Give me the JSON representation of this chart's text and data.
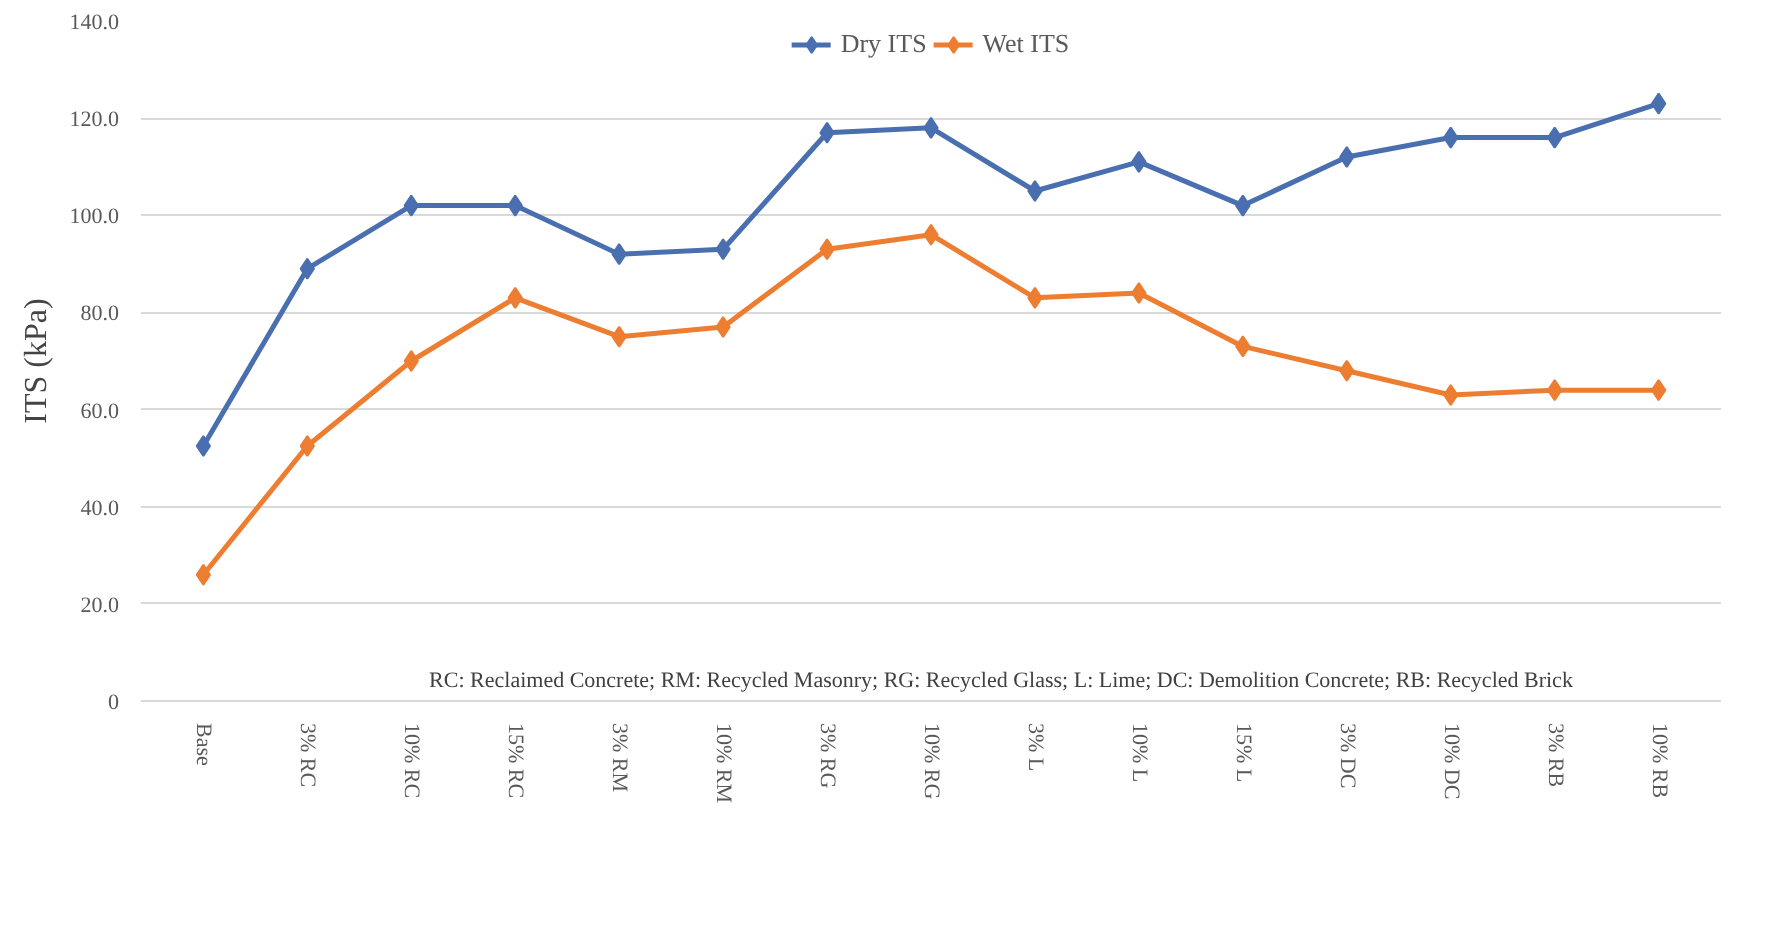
{
  "chart_data": {
    "type": "line",
    "ylabel": "ITS (kPa)",
    "categories": [
      "Base",
      "3% RC",
      "10% RC",
      "15% RC",
      "3% RM",
      "10% RM",
      "3% RG",
      "10% RG",
      "3% L",
      "10% L",
      "15% L",
      "3% DC",
      "10% DC",
      "3% RB",
      "10% RB"
    ],
    "series": [
      {
        "name": "Dry ITS",
        "color": "#4a6fb0",
        "values": [
          52.5,
          89,
          102,
          102,
          92,
          93,
          117,
          118,
          105,
          111,
          102,
          112,
          116,
          116,
          123
        ]
      },
      {
        "name": "Wet ITS",
        "color": "#ed7d31",
        "values": [
          26,
          52.5,
          70,
          83,
          75,
          77,
          93,
          96,
          83,
          84,
          73,
          68,
          63,
          64,
          64
        ]
      }
    ],
    "ylim": [
      0,
      140
    ],
    "yticks": [
      {
        "value": 0,
        "label": "0"
      },
      {
        "value": 20,
        "label": "20.0"
      },
      {
        "value": 40,
        "label": "40.0"
      },
      {
        "value": 60,
        "label": "60.0"
      },
      {
        "value": 80,
        "label": "80.0"
      },
      {
        "value": 100,
        "label": "100.0"
      },
      {
        "value": 120,
        "label": "120.0"
      },
      {
        "value": 140,
        "label": "140.0"
      }
    ],
    "grid": "y",
    "legend": "top",
    "marker": "diamond",
    "line_style": "solid",
    "annotations": [
      "RC: Reclaimed Concrete; RM: Recycled Masonry; RG: Recycled Glass; L: Lime; DC: Demolition Concrete; RB: Recycled Brick"
    ]
  }
}
